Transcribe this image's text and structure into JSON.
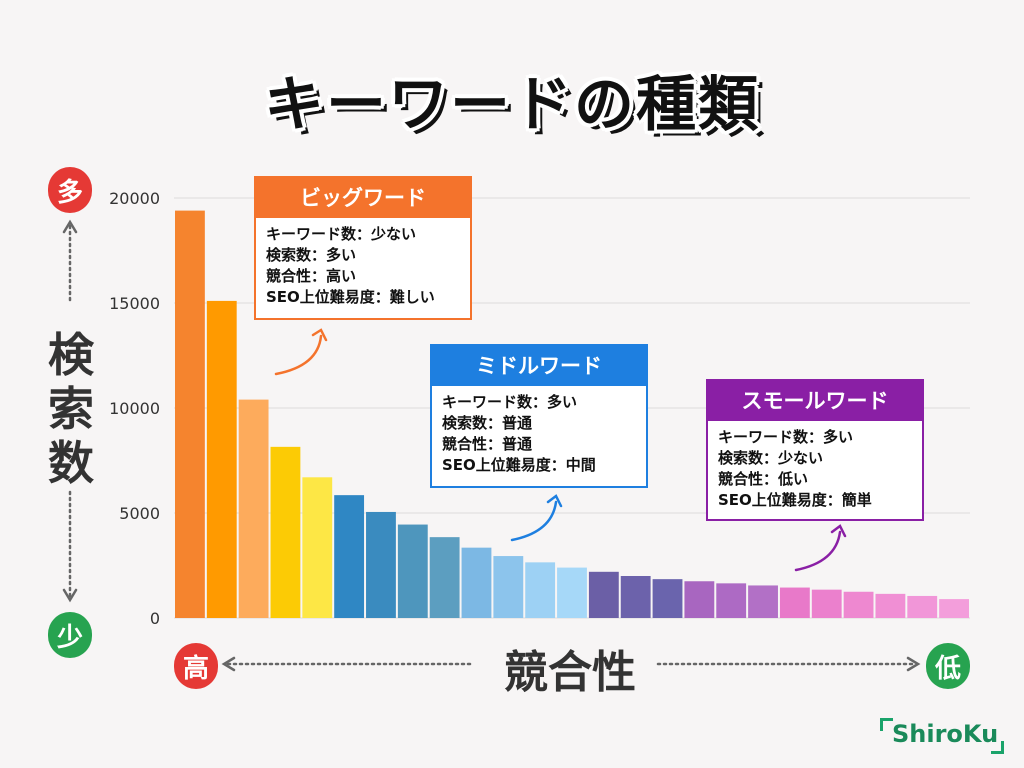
{
  "title": "キーワードの種類",
  "chart_data": {
    "type": "bar",
    "ylim": [
      0,
      20000
    ],
    "yticks": [
      "20000",
      "15000",
      "10000",
      "5000",
      "0"
    ],
    "grid": true,
    "ylabel": "検索数",
    "xlabel": "競合性",
    "y_top_label": "多",
    "y_bottom_label": "少",
    "x_left_label": "高",
    "x_right_label": "低",
    "values": [
      19400,
      15100,
      10400,
      8150,
      6700,
      5850,
      5050,
      4450,
      3850,
      3350,
      2950,
      2650,
      2400,
      2200,
      2000,
      1850,
      1750,
      1650,
      1550,
      1450,
      1350,
      1250,
      1150,
      1050,
      900
    ],
    "colors": [
      "#f5842e",
      "#ff9a00",
      "#fdab5c",
      "#fccb05",
      "#fde745",
      "#2f87c4",
      "#3a8bbf",
      "#4e96bd",
      "#5c9ec0",
      "#7cb8e4",
      "#8cc4ec",
      "#9dd1f4",
      "#a6d8f8",
      "#6b5fa6",
      "#6c62ab",
      "#6a64ad",
      "#a866c0",
      "#ad6ac4",
      "#b270c6",
      "#e879c9",
      "#eb80cd",
      "#ee88d0",
      "#f08fd4",
      "#f196d8",
      "#f39edb"
    ]
  },
  "colors": {
    "red": "#e53935",
    "green": "#27a350",
    "orange": "#f4732c",
    "blue": "#1e7fe0",
    "purple": "#8a1fa5"
  },
  "boxes": {
    "big": {
      "title": "ビッグワード",
      "lines": [
        "キーワード数：少ない",
        "検索数：多い",
        "競合性：高い",
        "SEO上位難易度：難しい"
      ]
    },
    "middle": {
      "title": "ミドルワード",
      "lines": [
        "キーワード数：多い",
        "検索数：普通",
        "競合性：普通",
        "SEO上位難易度：中間"
      ]
    },
    "small": {
      "title": "スモールワード",
      "lines": [
        "キーワード数：多い",
        "検索数：少ない",
        "競合性：低い",
        "SEO上位難易度：簡単"
      ]
    }
  },
  "logo": "ShiroKu"
}
